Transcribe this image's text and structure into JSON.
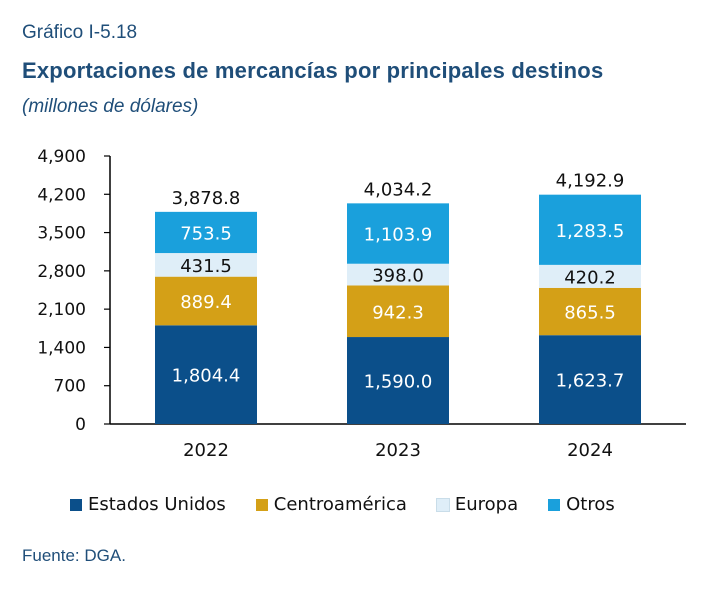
{
  "header": {
    "caption": "Gráfico I-5.18",
    "title": "Exportaciones de mercancías por principales destinos",
    "subtitle": "(millones de dólares)"
  },
  "source": "Fuente: DGA.",
  "colors": {
    "Estados Unidos": "#0b4f8a",
    "Centroamérica": "#d4a017",
    "Europa": "#dfeef8",
    "Otros": "#1aa0dc"
  },
  "chart_data": {
    "type": "bar",
    "stacked": true,
    "categories": [
      "2022",
      "2023",
      "2024"
    ],
    "series": [
      {
        "name": "Estados Unidos",
        "values": [
          1804.4,
          1590.0,
          1623.7
        ],
        "labels": [
          "1,804.4",
          "1,590.0",
          "1,623.7"
        ]
      },
      {
        "name": "Centroamérica",
        "values": [
          889.4,
          942.3,
          865.5
        ],
        "labels": [
          "889.4",
          "942.3",
          "865.5"
        ]
      },
      {
        "name": "Europa",
        "values": [
          431.5,
          398.0,
          420.2
        ],
        "labels": [
          "431.5",
          "398.0",
          "420.2"
        ]
      },
      {
        "name": "Otros",
        "values": [
          753.5,
          1103.9,
          1283.5
        ],
        "labels": [
          "753.5",
          "1,103.9",
          "1,283.5"
        ]
      }
    ],
    "totals": [
      3878.8,
      4034.2,
      4192.9
    ],
    "total_labels": [
      "3,878.8",
      "4,034.2",
      "4,192.9"
    ],
    "ylim": [
      0,
      4900
    ],
    "yticks": [
      0,
      700,
      1400,
      2100,
      2800,
      3500,
      4200,
      4900
    ],
    "ytick_labels": [
      "0",
      "700",
      "1,400",
      "2,100",
      "2,800",
      "3,500",
      "4,200",
      "4,900"
    ],
    "legend_position": "bottom",
    "grid": false
  }
}
